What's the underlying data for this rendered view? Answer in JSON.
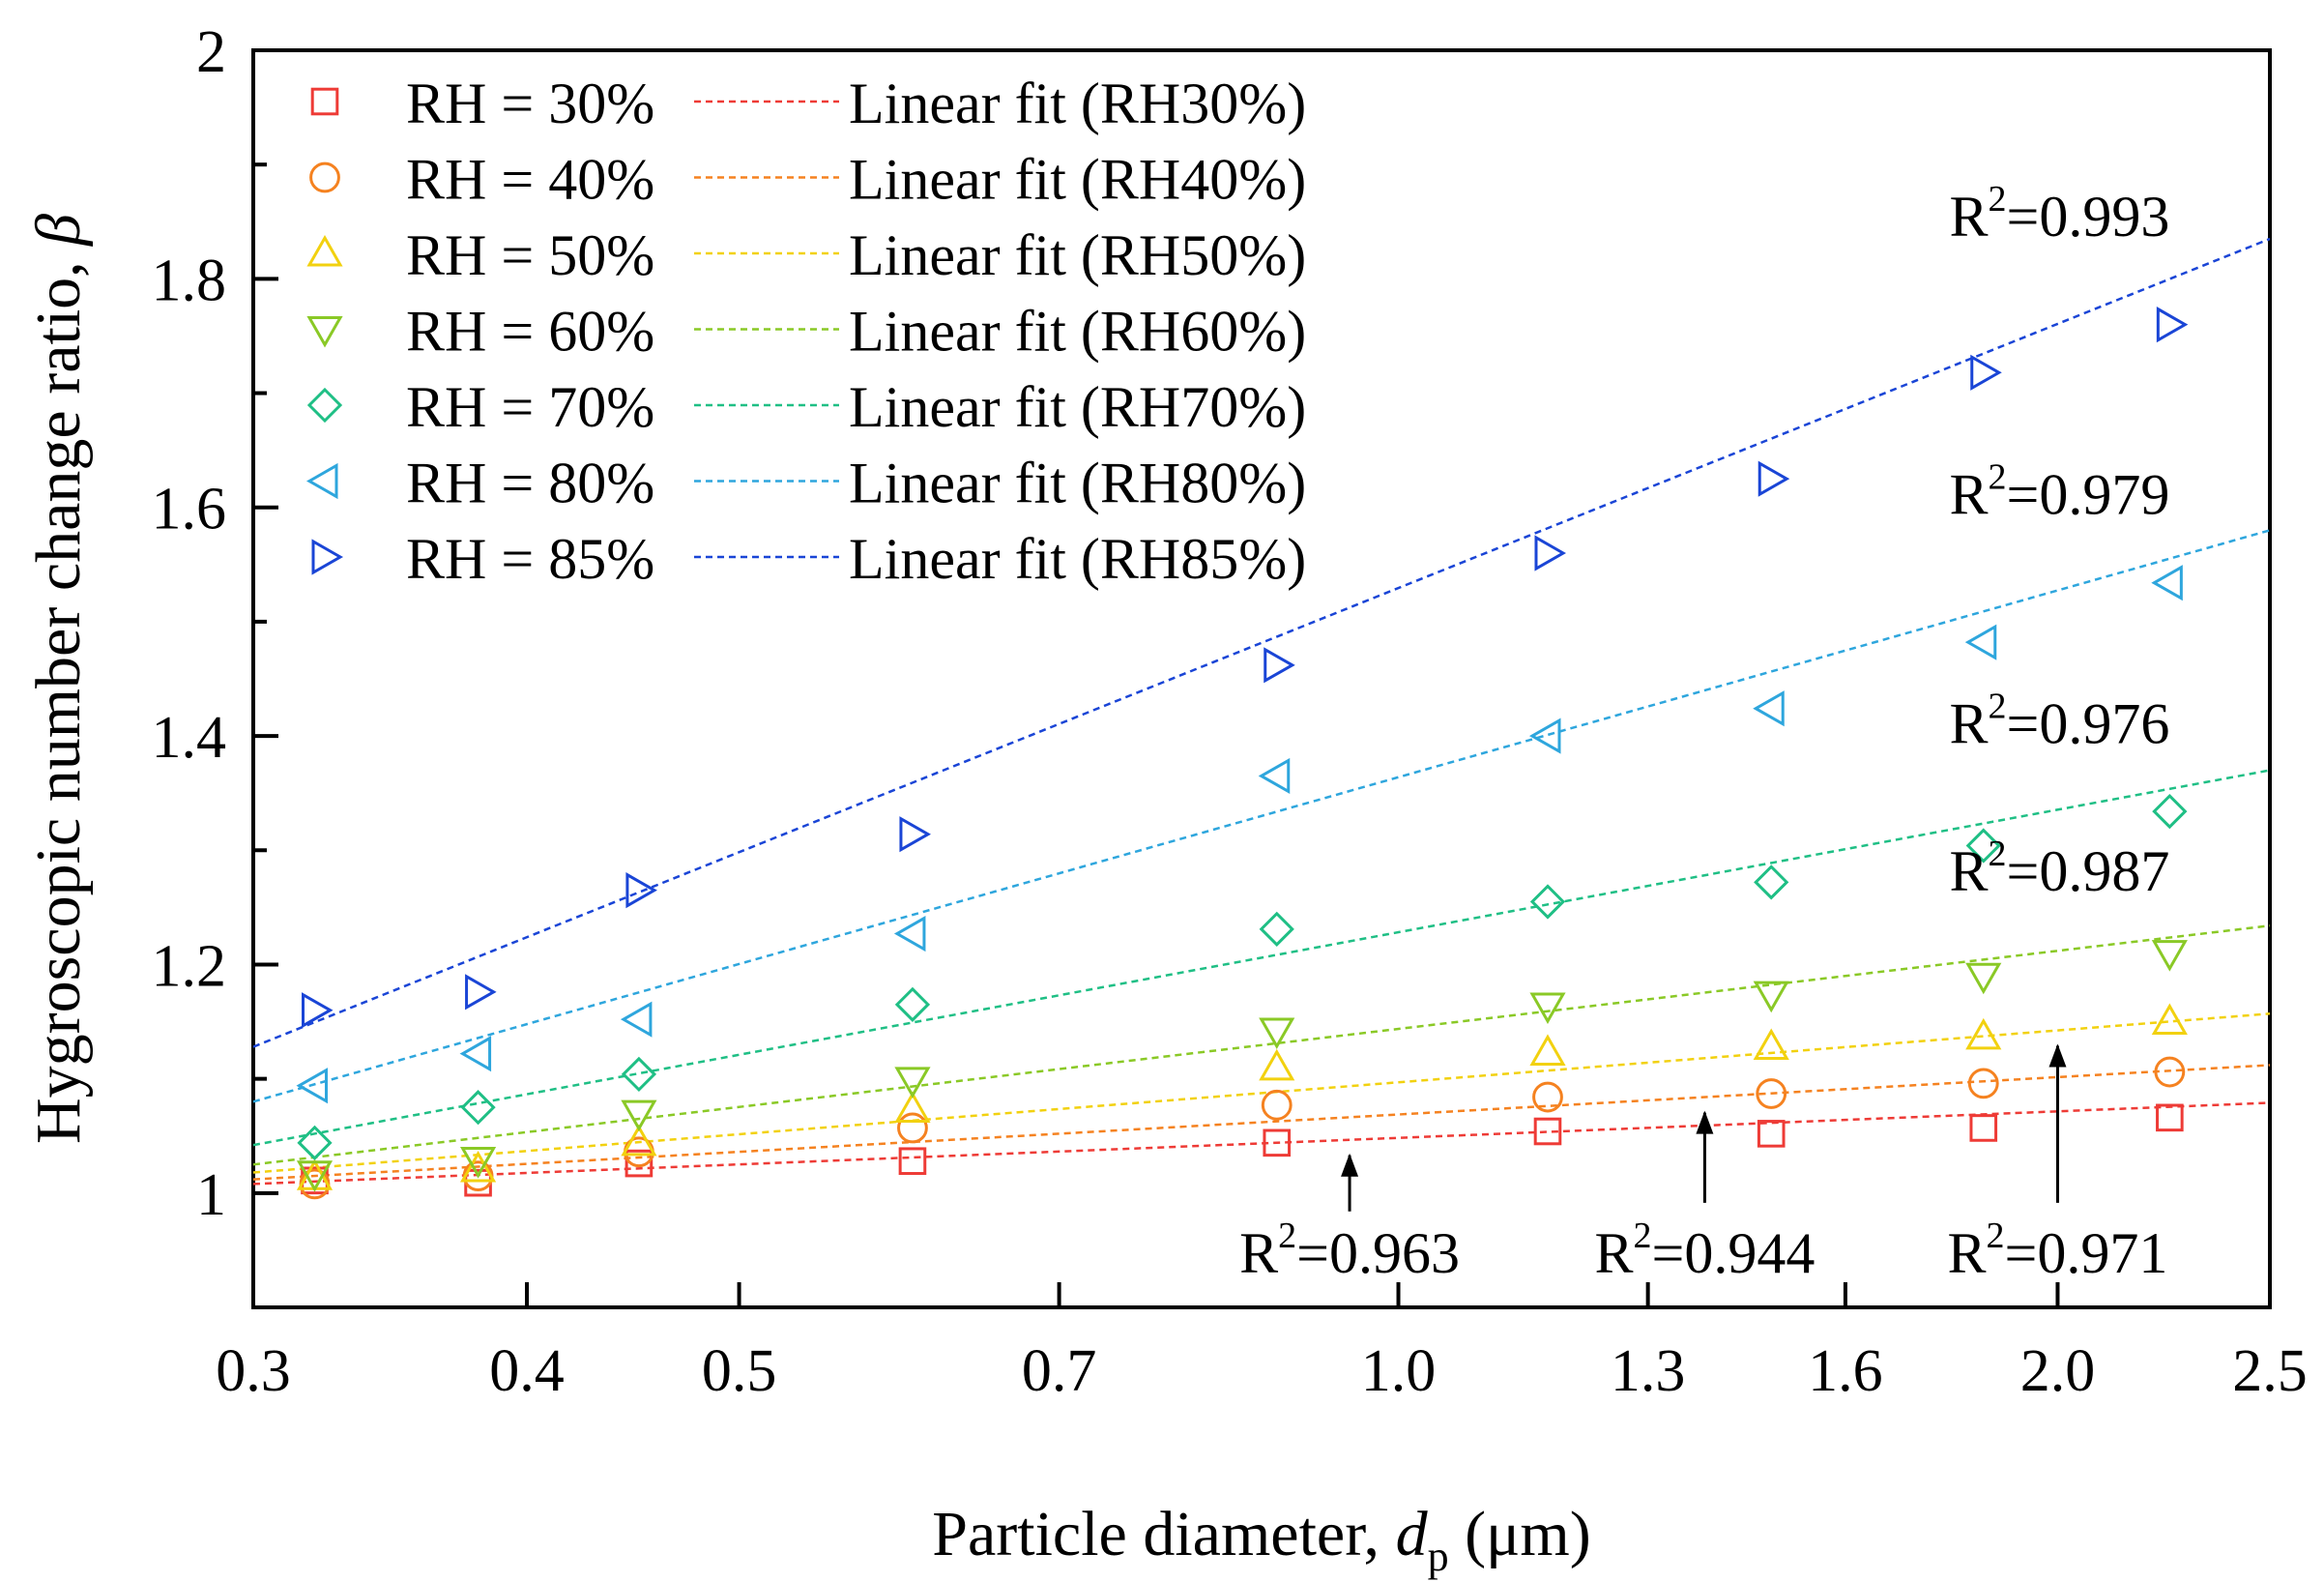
{
  "chart_data": {
    "type": "scatter",
    "x_scale": "log",
    "xlabel": "Particle diameter, ",
    "xlabel_italic": "d",
    "xlabel_sub": "p",
    "xlabel_unit": " (μm)",
    "ylabel": "Hygroscopic number change ratio, ",
    "ylabel_symbol": "β",
    "xlim": [
      0.3,
      2.5
    ],
    "ylim": [
      0.9,
      2.0
    ],
    "xticks": [
      0.3,
      0.4,
      0.5,
      0.7,
      1.0,
      1.3,
      1.6,
      2.0,
      2.5
    ],
    "xtick_labels": [
      "0.3",
      "0.4",
      "0.5",
      "0.7",
      "1.0",
      "1.3",
      "1.6",
      "2.0",
      "2.5"
    ],
    "yticks": [
      1.0,
      1.2,
      1.4,
      1.6,
      1.8,
      2.0
    ],
    "ytick_labels": [
      "1",
      "1.2",
      "1.4",
      "1.6",
      "1.8",
      "2"
    ],
    "x": [
      0.32,
      0.38,
      0.45,
      0.6,
      0.88,
      1.17,
      1.48,
      1.85,
      2.25
    ],
    "series": [
      {
        "name": "RH = 30%",
        "fit_name": "Linear fit (RH30%)",
        "color": "#ee3b36",
        "marker": "square",
        "values": [
          1.011,
          1.009,
          1.026,
          1.028,
          1.044,
          1.054,
          1.052,
          1.057,
          1.066
        ],
        "fit": [
          1.008,
          1.079
        ],
        "r2_label": "=0.963"
      },
      {
        "name": "RH = 40%",
        "fit_name": "Linear fit (RH40%)",
        "color": "#f58220",
        "marker": "circle",
        "values": [
          1.008,
          1.015,
          1.036,
          1.057,
          1.077,
          1.084,
          1.087,
          1.096,
          1.106
        ],
        "fit": [
          1.012,
          1.112
        ],
        "r2_label": "=0.944"
      },
      {
        "name": "RH = 50%",
        "fit_name": "Linear fit (RH50%)",
        "color": "#f2d10f",
        "marker": "triangle-up",
        "values": [
          1.014,
          1.021,
          1.044,
          1.073,
          1.11,
          1.123,
          1.128,
          1.137,
          1.15
        ],
        "fit": [
          1.018,
          1.157
        ],
        "r2_label": "=0.971"
      },
      {
        "name": "RH = 60%",
        "fit_name": "Linear fit (RH60%)",
        "color": "#8ac926",
        "marker": "triangle-down",
        "values": [
          1.017,
          1.029,
          1.07,
          1.099,
          1.142,
          1.164,
          1.174,
          1.19,
          1.21
        ],
        "fit": [
          1.025,
          1.234
        ],
        "r2_label": "=0.987"
      },
      {
        "name": "RH = 70%",
        "fit_name": "Linear fit (RH70%)",
        "color": "#1fbf85",
        "marker": "diamond",
        "values": [
          1.044,
          1.075,
          1.104,
          1.165,
          1.231,
          1.255,
          1.272,
          1.304,
          1.334
        ],
        "fit": [
          1.042,
          1.37
        ],
        "r2_label": "=0.976"
      },
      {
        "name": "RH = 80%",
        "fit_name": "Linear fit (RH80%)",
        "color": "#2ea6dd",
        "marker": "triangle-left",
        "values": [
          1.094,
          1.122,
          1.152,
          1.227,
          1.365,
          1.4,
          1.424,
          1.482,
          1.534
        ],
        "fit": [
          1.08,
          1.58
        ],
        "r2_label": "=0.979"
      },
      {
        "name": "RH = 85%",
        "fit_name": "Linear fit (RH85%)",
        "color": "#1a45d6",
        "marker": "triangle-right",
        "values": [
          1.16,
          1.176,
          1.265,
          1.314,
          1.462,
          1.56,
          1.625,
          1.718,
          1.76
        ],
        "fit": [
          1.128,
          1.835
        ],
        "r2_label": "=0.993"
      }
    ],
    "r2_annotations": [
      {
        "series": "RH = 85%",
        "text": "=0.993",
        "anchor": "top-right",
        "arrow": false
      },
      {
        "series": "RH = 80%",
        "text": "=0.979",
        "anchor": "top-right",
        "arrow": false
      },
      {
        "series": "RH = 70%",
        "text": "=0.976",
        "anchor": "top-right",
        "arrow": false
      },
      {
        "series": "RH = 60%",
        "text": "=0.987",
        "anchor": "top-right",
        "arrow": false
      },
      {
        "series": "RH = 30%",
        "text": "=0.963",
        "anchor": "bottom",
        "arrow": true,
        "arrow_x": 0.95
      },
      {
        "series": "RH = 40%",
        "text": "=0.944",
        "anchor": "bottom",
        "arrow": true,
        "arrow_x": 1.38
      },
      {
        "series": "RH = 50%",
        "text": "=0.971",
        "anchor": "bottom",
        "arrow": true,
        "arrow_x": 2.0
      }
    ],
    "r2_prefix": "R",
    "r2_sup": "2",
    "legend": "top-left",
    "grid": false
  }
}
